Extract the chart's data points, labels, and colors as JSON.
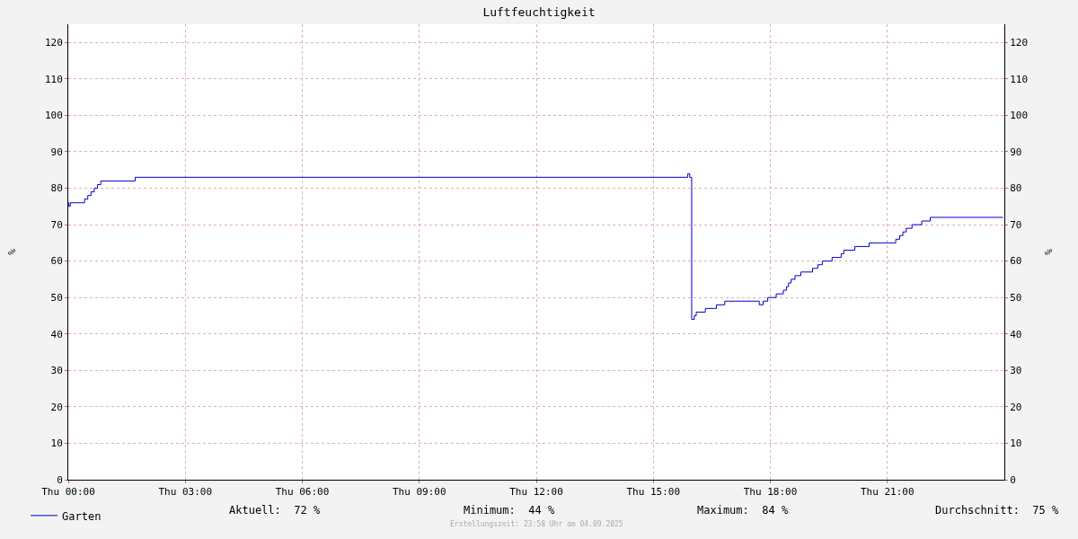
{
  "chart_data": {
    "type": "step",
    "title": "Luftfeuchtigkeit",
    "ylabel": "%",
    "y2label": "%",
    "x": [
      "2025-09-04T00:00",
      "2025-09-04T00:01",
      "2025-09-04T00:03",
      "2025-09-04T00:25",
      "2025-09-04T00:30",
      "2025-09-04T00:35",
      "2025-09-04T00:40",
      "2025-09-04T00:45",
      "2025-09-04T00:50",
      "2025-09-04T01:43",
      "2025-09-04T15:53",
      "2025-09-04T15:56",
      "2025-09-04T15:59",
      "2025-09-04T16:03",
      "2025-09-04T16:06",
      "2025-09-04T16:20",
      "2025-09-04T16:37",
      "2025-09-04T16:50",
      "2025-09-04T17:43",
      "2025-09-04T17:49",
      "2025-09-04T17:56",
      "2025-09-04T18:09",
      "2025-09-04T18:20",
      "2025-09-04T18:25",
      "2025-09-04T18:28",
      "2025-09-04T18:32",
      "2025-09-04T18:38",
      "2025-09-04T18:47",
      "2025-09-04T19:05",
      "2025-09-04T19:13",
      "2025-09-04T19:20",
      "2025-09-04T19:35",
      "2025-09-04T19:49",
      "2025-09-04T19:53",
      "2025-09-04T20:10",
      "2025-09-04T20:32",
      "2025-09-04T21:13",
      "2025-09-04T21:19",
      "2025-09-04T21:24",
      "2025-09-04T21:29",
      "2025-09-04T21:38",
      "2025-09-04T21:53",
      "2025-09-04T22:06",
      "2025-09-04T23:58"
    ],
    "series": [
      {
        "name": "Garten",
        "color": "#0000cc",
        "values": [
          76,
          75,
          76,
          77,
          78,
          79,
          80,
          81,
          82,
          83,
          84,
          83,
          44,
          45,
          46,
          47,
          48,
          49,
          48,
          49,
          50,
          51,
          52,
          53,
          54,
          55,
          56,
          57,
          58,
          59,
          60,
          61,
          62,
          63,
          64,
          65,
          66,
          67,
          68,
          69,
          70,
          71,
          72,
          72
        ]
      }
    ],
    "xlim": [
      "2025-09-04T00:00",
      "2025-09-05T00:00"
    ],
    "xticks": [
      {
        "value": "2025-09-04T00:00",
        "label": "Thu 00:00"
      },
      {
        "value": "2025-09-04T03:00",
        "label": "Thu 03:00"
      },
      {
        "value": "2025-09-04T06:00",
        "label": "Thu 06:00"
      },
      {
        "value": "2025-09-04T09:00",
        "label": "Thu 09:00"
      },
      {
        "value": "2025-09-04T12:00",
        "label": "Thu 12:00"
      },
      {
        "value": "2025-09-04T15:00",
        "label": "Thu 15:00"
      },
      {
        "value": "2025-09-04T18:00",
        "label": "Thu 18:00"
      },
      {
        "value": "2025-09-04T21:00",
        "label": "Thu 21:00"
      }
    ],
    "ylim": [
      0,
      125
    ],
    "yticks": [
      0,
      10,
      20,
      30,
      40,
      50,
      60,
      70,
      80,
      90,
      100,
      110,
      120
    ],
    "y2lim": [
      0,
      125
    ],
    "y2ticks": [
      0,
      10,
      20,
      30,
      40,
      50,
      60,
      70,
      80,
      90,
      100,
      110,
      120
    ],
    "grid": true,
    "legend": "bottom left",
    "marker": "none",
    "line_style": "solid",
    "annotations": [
      "Aktuell:  72 %",
      "Minimum:  44 %",
      "Maximum:  84 %",
      "Durchschnitt:  75 %",
      "Erstellungszeit: 23:58 Uhr am 04.09.2025"
    ]
  }
}
